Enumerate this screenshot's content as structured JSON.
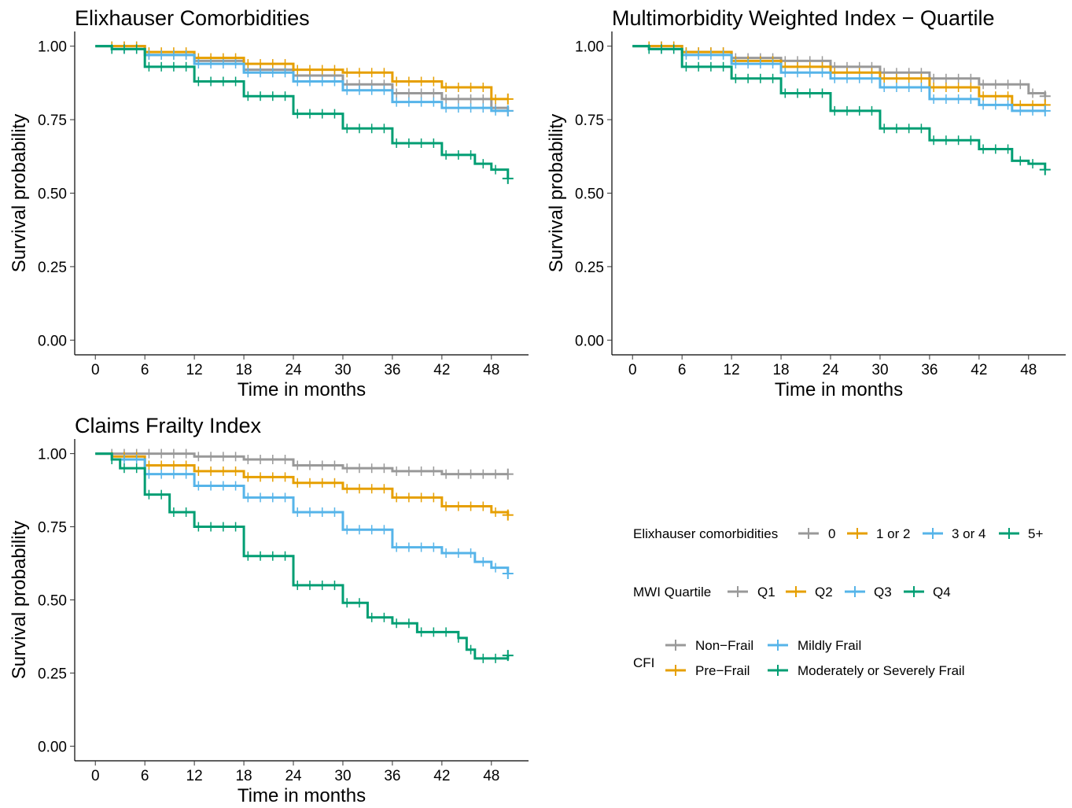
{
  "colors": {
    "grey": "#999999",
    "orange": "#E69F00",
    "blue": "#56B4E9",
    "green": "#009E73"
  },
  "legend": [
    {
      "title": "Elixhauser comorbidities",
      "items": [
        {
          "label": "0",
          "color": "#999999"
        },
        {
          "label": "1 or 2",
          "color": "#E69F00"
        },
        {
          "label": "3 or 4",
          "color": "#56B4E9"
        },
        {
          "label": "5+",
          "color": "#009E73"
        }
      ]
    },
    {
      "title": "MWI Quartile",
      "items": [
        {
          "label": "Q1",
          "color": "#999999"
        },
        {
          "label": "Q2",
          "color": "#E69F00"
        },
        {
          "label": "Q3",
          "color": "#56B4E9"
        },
        {
          "label": "Q4",
          "color": "#009E73"
        }
      ]
    },
    {
      "title": "CFI",
      "items": [
        {
          "label": "Non−Frail",
          "color": "#999999"
        },
        {
          "label": "Mildly Frail",
          "color": "#56B4E9"
        },
        {
          "label": "Pre−Frail",
          "color": "#E69F00"
        },
        {
          "label": "Moderately or Severely Frail",
          "color": "#009E73"
        }
      ]
    }
  ],
  "chart_data": [
    {
      "type": "line",
      "step": true,
      "title": "Elixhauser Comorbidities",
      "xlabel": "Time in months",
      "ylabel": "Survival probability",
      "xlim": [
        -2.5,
        52.5
      ],
      "ylim": [
        -0.05,
        1.05
      ],
      "xticks": [
        0,
        6,
        12,
        18,
        24,
        30,
        36,
        42,
        48
      ],
      "yticks": [
        "0.00",
        "0.25",
        "0.50",
        "0.75",
        "1.00"
      ],
      "grid": false,
      "series": [
        {
          "name": "0",
          "color": "#999999",
          "x": [
            0,
            2,
            6,
            12,
            18,
            24,
            30,
            36,
            42,
            48,
            50
          ],
          "y": [
            1.0,
            1.0,
            0.97,
            0.95,
            0.92,
            0.9,
            0.87,
            0.84,
            0.82,
            0.79,
            0.78
          ]
        },
        {
          "name": "1 or 2",
          "color": "#E69F00",
          "x": [
            0,
            2,
            6,
            12,
            18,
            24,
            30,
            36,
            42,
            48,
            50
          ],
          "y": [
            1.0,
            1.0,
            0.98,
            0.96,
            0.94,
            0.92,
            0.91,
            0.88,
            0.86,
            0.82,
            0.82
          ]
        },
        {
          "name": "3 or 4",
          "color": "#56B4E9",
          "x": [
            0,
            2,
            6,
            12,
            18,
            24,
            30,
            36,
            42,
            48,
            50
          ],
          "y": [
            1.0,
            0.99,
            0.97,
            0.94,
            0.91,
            0.88,
            0.85,
            0.81,
            0.79,
            0.78,
            0.78
          ]
        },
        {
          "name": "5+",
          "color": "#009E73",
          "x": [
            0,
            2,
            6,
            12,
            18,
            24,
            30,
            36,
            42,
            46,
            48,
            50
          ],
          "y": [
            1.0,
            0.99,
            0.93,
            0.88,
            0.83,
            0.77,
            0.72,
            0.67,
            0.63,
            0.6,
            0.58,
            0.55
          ]
        }
      ]
    },
    {
      "type": "line",
      "step": true,
      "title": "Multimorbidity Weighted Index − Quartile",
      "xlabel": "Time in months",
      "ylabel": "Survival probability",
      "xlim": [
        -2.5,
        52.5
      ],
      "ylim": [
        -0.05,
        1.05
      ],
      "xticks": [
        0,
        6,
        12,
        18,
        24,
        30,
        36,
        42,
        48
      ],
      "yticks": [
        "0.00",
        "0.25",
        "0.50",
        "0.75",
        "1.00"
      ],
      "grid": false,
      "series": [
        {
          "name": "Q1",
          "color": "#999999",
          "x": [
            0,
            2,
            6,
            12,
            18,
            24,
            30,
            36,
            42,
            48,
            50
          ],
          "y": [
            1.0,
            1.0,
            0.98,
            0.96,
            0.95,
            0.93,
            0.91,
            0.89,
            0.87,
            0.84,
            0.83
          ]
        },
        {
          "name": "Q2",
          "color": "#E69F00",
          "x": [
            0,
            2,
            6,
            12,
            18,
            24,
            30,
            36,
            42,
            46,
            48,
            50
          ],
          "y": [
            1.0,
            1.0,
            0.98,
            0.95,
            0.93,
            0.91,
            0.89,
            0.86,
            0.83,
            0.8,
            0.8,
            0.8
          ]
        },
        {
          "name": "Q3",
          "color": "#56B4E9",
          "x": [
            0,
            2,
            6,
            12,
            18,
            24,
            30,
            36,
            42,
            46,
            48,
            50
          ],
          "y": [
            1.0,
            0.99,
            0.97,
            0.94,
            0.91,
            0.89,
            0.86,
            0.82,
            0.8,
            0.78,
            0.78,
            0.78
          ]
        },
        {
          "name": "Q4",
          "color": "#009E73",
          "x": [
            0,
            2,
            6,
            12,
            18,
            24,
            30,
            36,
            42,
            46,
            48,
            50
          ],
          "y": [
            1.0,
            0.99,
            0.93,
            0.89,
            0.84,
            0.78,
            0.72,
            0.68,
            0.65,
            0.61,
            0.6,
            0.58
          ]
        }
      ]
    },
    {
      "type": "line",
      "step": true,
      "title": "Claims Frailty Index",
      "xlabel": "Time in months",
      "ylabel": "Survival probability",
      "xlim": [
        -2.5,
        52.5
      ],
      "ylim": [
        -0.05,
        1.05
      ],
      "xticks": [
        0,
        6,
        12,
        18,
        24,
        30,
        36,
        42,
        48
      ],
      "yticks": [
        "0.00",
        "0.25",
        "0.50",
        "0.75",
        "1.00"
      ],
      "grid": false,
      "series": [
        {
          "name": "Non−Frail",
          "color": "#999999",
          "x": [
            0,
            2,
            6,
            12,
            18,
            24,
            30,
            36,
            42,
            48,
            50
          ],
          "y": [
            1.0,
            1.0,
            1.0,
            0.99,
            0.98,
            0.96,
            0.95,
            0.94,
            0.93,
            0.93,
            0.93
          ]
        },
        {
          "name": "Pre−Frail",
          "color": "#E69F00",
          "x": [
            0,
            2,
            6,
            12,
            18,
            24,
            30,
            36,
            42,
            48,
            50
          ],
          "y": [
            1.0,
            0.99,
            0.96,
            0.94,
            0.92,
            0.9,
            0.88,
            0.85,
            0.82,
            0.8,
            0.79
          ]
        },
        {
          "name": "Mildly Frail",
          "color": "#56B4E9",
          "x": [
            0,
            2,
            6,
            12,
            18,
            24,
            30,
            36,
            42,
            46,
            48,
            50
          ],
          "y": [
            1.0,
            0.98,
            0.93,
            0.89,
            0.85,
            0.8,
            0.74,
            0.68,
            0.66,
            0.63,
            0.61,
            0.59
          ]
        },
        {
          "name": "Moderately or Severely Frail",
          "color": "#009E73",
          "x": [
            0,
            2,
            3,
            6,
            9,
            12,
            18,
            24,
            30,
            33,
            36,
            39,
            42,
            44,
            45,
            46,
            48,
            50
          ],
          "y": [
            1.0,
            0.98,
            0.95,
            0.86,
            0.8,
            0.75,
            0.65,
            0.55,
            0.49,
            0.44,
            0.42,
            0.39,
            0.39,
            0.37,
            0.33,
            0.3,
            0.3,
            0.31
          ]
        }
      ]
    }
  ]
}
